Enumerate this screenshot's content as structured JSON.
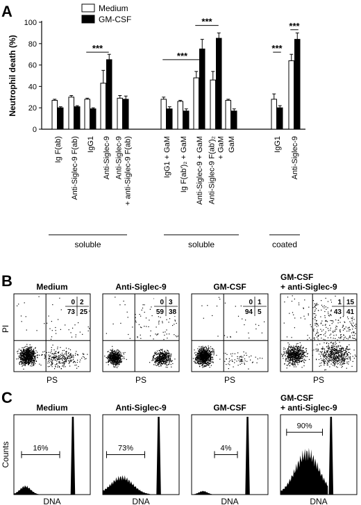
{
  "chart_data": [
    {
      "panel": "A",
      "type": "bar",
      "ylabel": "Neutrophil death (%)",
      "ylim": [
        0,
        100
      ],
      "yticks": [
        0,
        20,
        40,
        60,
        80,
        100
      ],
      "legend": {
        "placement": "top-left",
        "entries": [
          {
            "name": "Medium",
            "color": "#ffffff"
          },
          {
            "name": "GM-CSF",
            "color": "#000000"
          }
        ]
      },
      "categories": [
        "Ig F(ab)",
        "Anti-Siglec-9 F(ab)",
        "IgG1",
        "Anti-Siglec-9",
        "Anti-Siglec-9 + anti-Siglec-9 F(ab)",
        "IgG1 + GaM",
        "Ig F(ab')2 + GaM",
        "Anti-Siglec-9 + GaM",
        "Anti-Siglec-9 F(ab')2 + GaM",
        "GaM",
        "IgG1",
        "Anti-Siglec-9"
      ],
      "category_lines": [
        [
          "Ig F(ab)"
        ],
        [
          "Anti-Siglec-9 F(ab)"
        ],
        [
          "IgG1"
        ],
        [
          "Anti-Siglec-9"
        ],
        [
          "Anti-Siglec-9",
          "+ anti-Siglec-9 F(ab)"
        ],
        [
          "IgG1 + GaM"
        ],
        [
          "Ig F(ab')₂ + GaM"
        ],
        [
          "Anti-Siglec-9 + GaM"
        ],
        [
          "Anti-Siglec-9 F(ab')₂",
          "+ GaM"
        ],
        [
          "GaM"
        ],
        [
          "IgG1"
        ],
        [
          "Anti-Siglec-9"
        ]
      ],
      "series": [
        {
          "name": "Medium",
          "values": [
            27,
            30,
            28,
            43,
            29,
            28,
            26,
            48,
            46,
            27,
            28,
            64
          ],
          "errors": [
            1,
            1.5,
            1,
            12,
            2.5,
            2,
            1,
            6,
            8,
            1,
            5,
            6
          ]
        },
        {
          "name": "GM-CSF",
          "values": [
            20,
            21,
            19,
            65,
            28,
            19,
            17,
            75,
            85,
            17,
            20,
            84
          ],
          "errors": [
            1,
            1,
            1,
            5,
            3,
            2,
            2,
            9,
            5,
            2,
            2,
            6
          ]
        }
      ],
      "groups": [
        {
          "label": "soluble",
          "from": 0,
          "to": 4
        },
        {
          "label": "soluble",
          "from": 5,
          "to": 9
        },
        {
          "label": "coated",
          "from": 10,
          "to": 11
        }
      ],
      "significance": [
        {
          "label": "***",
          "from": 2,
          "to": 3,
          "y": 72
        },
        {
          "label": "***",
          "from": 5,
          "to": 7,
          "y": 65
        },
        {
          "label": "***",
          "from": 7,
          "to": 8,
          "y": 97
        },
        {
          "label": "***",
          "from": 10,
          "to": 10.99,
          "y": 72
        },
        {
          "label": "***",
          "from": 11,
          "to": 11.99,
          "y": 93
        }
      ]
    },
    {
      "panel": "B",
      "type": "scatter",
      "xlabel": "PS",
      "ylabel": "PI",
      "plots": [
        {
          "title": [
            "Medium"
          ],
          "quadrants": {
            "ul": "0",
            "ur": "2",
            "ll": "73",
            "lr": "25"
          }
        },
        {
          "title": [
            "Anti-Siglec-9"
          ],
          "quadrants": {
            "ul": "0",
            "ur": "3",
            "ll": "59",
            "lr": "38"
          }
        },
        {
          "title": [
            "GM-CSF"
          ],
          "quadrants": {
            "ul": "0",
            "ur": "1",
            "ll": "94",
            "lr": "5"
          }
        },
        {
          "title": [
            "GM-CSF",
            "+ anti-Siglec-9"
          ],
          "quadrants": {
            "ul": "1",
            "ur": "15",
            "ll": "43",
            "lr": "41"
          }
        }
      ]
    },
    {
      "panel": "C",
      "type": "area",
      "xlabel": "DNA",
      "ylabel": "Counts",
      "plots": [
        {
          "title": [
            "Medium"
          ],
          "percent": "16%"
        },
        {
          "title": [
            "Anti-Siglec-9"
          ],
          "percent": "73%"
        },
        {
          "title": [
            "GM-CSF"
          ],
          "percent": "4%"
        },
        {
          "title": [
            "GM-CSF",
            "+ anti-Siglec-9"
          ],
          "percent": "90%"
        }
      ]
    }
  ],
  "panel_letters": {
    "a": "A",
    "b": "B",
    "c": "C"
  }
}
